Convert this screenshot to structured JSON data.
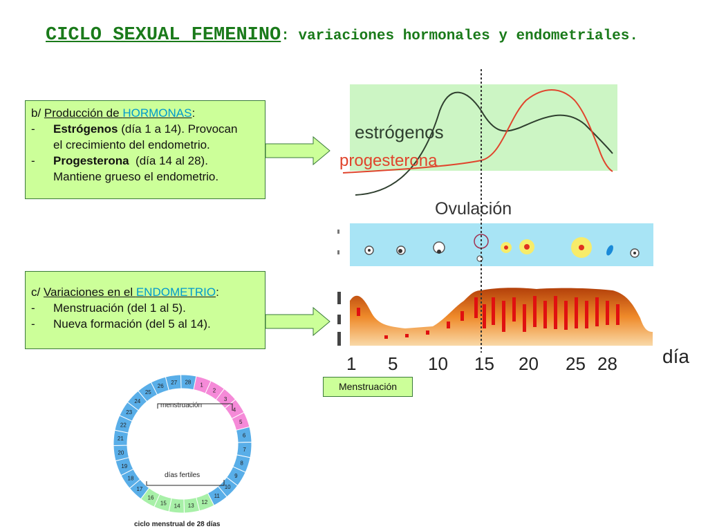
{
  "title": {
    "main": "CICLO SEXUAL FEMENINO",
    "sub": ": variaciones hormonales y endometriales."
  },
  "hormones_box": {
    "prefix": "b/ ",
    "heading_text": "Producción de ",
    "heading_highlight": "HORMONAS",
    "heading_colon": ":",
    "items": [
      {
        "dash": "-",
        "name": "Estrógenos",
        "text": " (día 1 a 14). Provocan",
        "cont": "el crecimiento del endometrio."
      },
      {
        "dash": "-",
        "name": "Progesterona",
        "text": "  (día 14 al 28).",
        "cont": "Mantiene grueso el endometrio."
      }
    ]
  },
  "endometrium_box": {
    "prefix": "c/ ",
    "heading_text": "Variaciones en el ",
    "heading_highlight": "ENDOMETRIO",
    "heading_colon": ":",
    "items": [
      {
        "dash": "-",
        "text": "Menstruación (del 1 al 5)."
      },
      {
        "dash": "-",
        "text": "Nueva formación (del 5 al 14)."
      }
    ]
  },
  "hormone_chart": {
    "estrogen_label": "estrógenos",
    "progesterone_label": "progesterona",
    "ovulation_label": "Ovulación",
    "day_ticks": [
      "1",
      "5",
      "10",
      "15",
      "20",
      "25",
      "28"
    ],
    "axis_label": "día"
  },
  "menstruation_label": "Menstruación",
  "cycle_wheel": {
    "days": [
      "1",
      "2",
      "3",
      "4",
      "5",
      "6",
      "7",
      "8",
      "9",
      "10",
      "11",
      "12",
      "13",
      "14",
      "15",
      "16",
      "17",
      "18",
      "19",
      "20",
      "21",
      "22",
      "23",
      "24",
      "25",
      "26",
      "27",
      "28"
    ],
    "menstruation_label": "menstruación",
    "fertile_label": "días fertiles",
    "caption": "ciclo menstrual de 28 días"
  },
  "colors": {
    "title": "#1a7a1a",
    "box": "#ccff99",
    "estrogen": "#2f4f2f",
    "progesterone": "#e0442c",
    "menstrual_days": "#f58ad8",
    "fertile_days": "#a8f0a8",
    "normal_days": "#59aee8"
  }
}
